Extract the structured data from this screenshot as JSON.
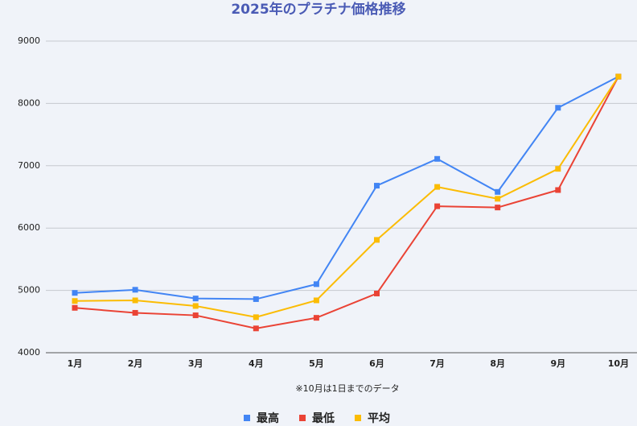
{
  "chart_data": {
    "type": "line",
    "title": "2025年のプラチナ価格推移",
    "note": "※10月は1日までのデータ",
    "categories": [
      "1月",
      "2月",
      "3月",
      "4月",
      "5月",
      "6月",
      "7月",
      "8月",
      "9月",
      "10月"
    ],
    "series": [
      {
        "name": "最高",
        "color": "#4285f4",
        "values": [
          4960,
          5010,
          4870,
          4860,
          5100,
          6680,
          7110,
          6580,
          7930,
          8430
        ]
      },
      {
        "name": "最低",
        "color": "#ea4335",
        "values": [
          4720,
          4640,
          4600,
          4390,
          4560,
          4950,
          6350,
          6330,
          6610,
          8430
        ]
      },
      {
        "name": "平均",
        "color": "#fbbc04",
        "values": [
          4830,
          4840,
          4750,
          4570,
          4840,
          5810,
          6660,
          6470,
          6950,
          8430
        ]
      }
    ],
    "ylim": [
      4000,
      9000
    ],
    "yticks": [
      4000,
      5000,
      6000,
      7000,
      8000,
      9000
    ],
    "grid": true,
    "legend": "bottom"
  }
}
